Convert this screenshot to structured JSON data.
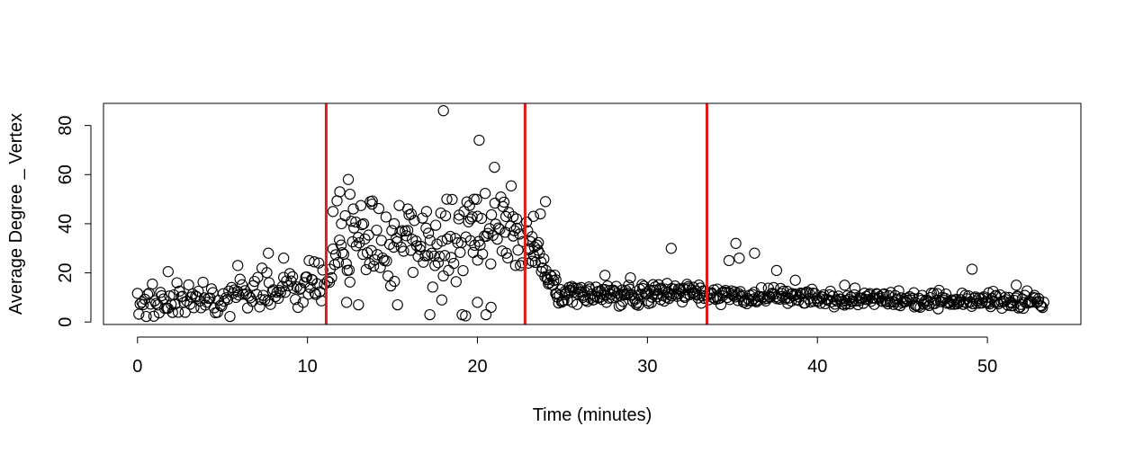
{
  "chart_data": {
    "type": "scatter",
    "title": "",
    "xlabel": "Time (minutes)",
    "ylabel": "Average Degree _ Vertex",
    "xlim": [
      -2,
      55.5
    ],
    "ylim": [
      -1,
      89
    ],
    "xticks": [
      0,
      10,
      20,
      30,
      40,
      50
    ],
    "yticks": [
      0,
      20,
      40,
      60,
      80
    ],
    "vlines": [
      11.1,
      22.8,
      33.5
    ],
    "vline_color": "#e31a1c",
    "marker": "open-circle",
    "segments": [
      {
        "x_start": 0.0,
        "x_end": 11.0,
        "n": 130,
        "base_start": 7,
        "base_end": 15,
        "spread": 7,
        "min": 2,
        "max": 30
      },
      {
        "x_start": 11.2,
        "x_end": 22.7,
        "n": 150,
        "base_start": 28,
        "base_end": 35,
        "spread": 16,
        "min": 2,
        "max": 58
      },
      {
        "x_start": 22.9,
        "x_end": 24.6,
        "n": 30,
        "base_start": 35,
        "base_end": 16,
        "spread": 7,
        "min": 10,
        "max": 50
      },
      {
        "x_start": 24.6,
        "x_end": 33.4,
        "n": 150,
        "base_start": 11,
        "base_end": 12,
        "spread": 4,
        "min": 5,
        "max": 22
      },
      {
        "x_start": 33.6,
        "x_end": 53.3,
        "n": 300,
        "base_start": 11,
        "base_end": 8,
        "spread": 3,
        "min": 4,
        "max": 18
      }
    ],
    "points": [
      {
        "x": 1.8,
        "y": 20.5
      },
      {
        "x": 5.9,
        "y": 23
      },
      {
        "x": 7.7,
        "y": 28
      },
      {
        "x": 8.6,
        "y": 26
      },
      {
        "x": 10.1,
        "y": 25
      },
      {
        "x": 10.4,
        "y": 24.5
      },
      {
        "x": 11.5,
        "y": 45
      },
      {
        "x": 11.9,
        "y": 53
      },
      {
        "x": 12.0,
        "y": 40
      },
      {
        "x": 12.4,
        "y": 58
      },
      {
        "x": 12.5,
        "y": 52
      },
      {
        "x": 12.7,
        "y": 46
      },
      {
        "x": 13.3,
        "y": 40
      },
      {
        "x": 13.7,
        "y": 49
      },
      {
        "x": 13.8,
        "y": 48
      },
      {
        "x": 15.1,
        "y": 40
      },
      {
        "x": 15.9,
        "y": 46
      },
      {
        "x": 16.1,
        "y": 44
      },
      {
        "x": 17.0,
        "y": 45
      },
      {
        "x": 17.5,
        "y": 23
      },
      {
        "x": 18.0,
        "y": 86
      },
      {
        "x": 18.2,
        "y": 50
      },
      {
        "x": 18.9,
        "y": 42
      },
      {
        "x": 19.6,
        "y": 42
      },
      {
        "x": 19.8,
        "y": 50
      },
      {
        "x": 20.0,
        "y": 43
      },
      {
        "x": 20.1,
        "y": 74
      },
      {
        "x": 21.0,
        "y": 63
      },
      {
        "x": 21.5,
        "y": 47
      },
      {
        "x": 21.7,
        "y": 28
      },
      {
        "x": 22.1,
        "y": 35
      },
      {
        "x": 22.3,
        "y": 42
      },
      {
        "x": 15.3,
        "y": 7
      },
      {
        "x": 17.2,
        "y": 3
      },
      {
        "x": 17.9,
        "y": 9
      },
      {
        "x": 19.1,
        "y": 3
      },
      {
        "x": 19.3,
        "y": 2.5
      },
      {
        "x": 20.0,
        "y": 8
      },
      {
        "x": 20.5,
        "y": 3
      },
      {
        "x": 20.8,
        "y": 6
      },
      {
        "x": 12.3,
        "y": 8
      },
      {
        "x": 13.0,
        "y": 7
      },
      {
        "x": 23.0,
        "y": 24
      },
      {
        "x": 23.3,
        "y": 43
      },
      {
        "x": 23.7,
        "y": 44
      },
      {
        "x": 24.0,
        "y": 49
      },
      {
        "x": 31.4,
        "y": 30
      },
      {
        "x": 27.5,
        "y": 19
      },
      {
        "x": 29.0,
        "y": 18
      },
      {
        "x": 35.2,
        "y": 32
      },
      {
        "x": 35.4,
        "y": 26
      },
      {
        "x": 34.8,
        "y": 25
      },
      {
        "x": 36.3,
        "y": 28
      },
      {
        "x": 37.6,
        "y": 21
      },
      {
        "x": 38.7,
        "y": 17
      },
      {
        "x": 41.6,
        "y": 15
      },
      {
        "x": 49.1,
        "y": 21.5
      },
      {
        "x": 51.7,
        "y": 15
      }
    ]
  }
}
